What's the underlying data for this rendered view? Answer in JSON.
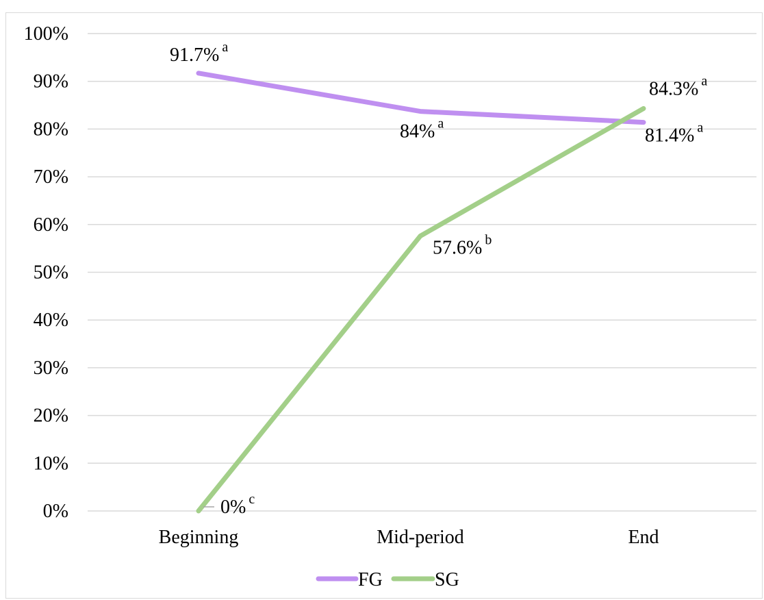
{
  "chart_data": {
    "type": "line",
    "categories": [
      "Beginning",
      "Mid-period",
      "End"
    ],
    "ylim": [
      0,
      100
    ],
    "y_ticks": [
      0,
      10,
      20,
      30,
      40,
      50,
      60,
      70,
      80,
      90,
      100
    ],
    "y_tick_labels": [
      "0%",
      "10%",
      "20%",
      "30%",
      "40%",
      "50%",
      "60%",
      "70%",
      "80%",
      "90%",
      "100%"
    ],
    "grid": true,
    "legend_position": "bottom",
    "series": [
      {
        "name": "FG",
        "color": "#bf8ff0",
        "values": [
          91.7,
          83.7,
          81.4
        ],
        "labels": [
          "91.7%",
          "84%",
          "81.4%"
        ],
        "superscripts": [
          "a",
          "a",
          "a"
        ]
      },
      {
        "name": "SG",
        "color": "#a3cf89",
        "values": [
          0,
          57.6,
          84.3
        ],
        "labels": [
          "0%",
          "57.6%",
          "84.3%"
        ],
        "superscripts": [
          "c",
          "b",
          "a"
        ]
      }
    ]
  }
}
